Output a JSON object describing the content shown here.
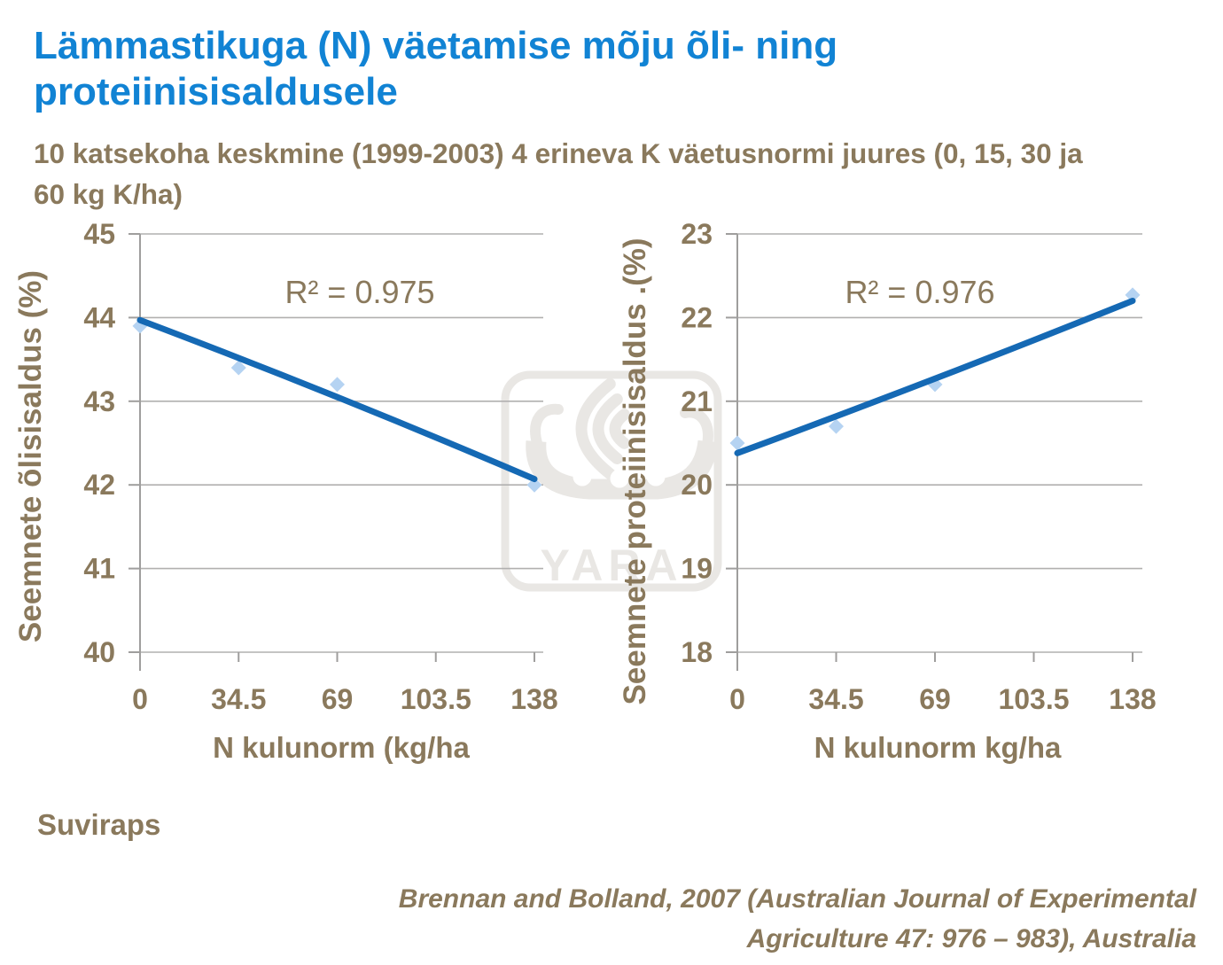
{
  "slide": {
    "title": "Lämmastikuga (N) väetamise mõju õli- ning proteiinisisaldusele",
    "subtitle": "10 katsekoha keskmine (1999-2003) 4 erineva K väetusnormi juures (0, 15, 30 ja 60 kg K/ha)",
    "footnote_left": "Suviraps",
    "citation": "Brennan and Bolland, 2007 (Australian Journal of Experimental Agriculture 47: 976 – 983), Australia",
    "watermark": "YARA"
  },
  "colors": {
    "title_blue": "#1183d4",
    "text_brown": "#8a795c",
    "trend_blue": "#1569b4",
    "marker_blue": "#b5d3f2",
    "gridline_gray": "#b1b0af",
    "axis_gray": "#9f9e9d",
    "watermark_gray": "#e9e7e4"
  },
  "chart_data": [
    {
      "type": "scatter",
      "title": "",
      "xlabel": "N kulunorm (kg/ha",
      "ylabel": "Seemnete õlisisaldus (%)",
      "r2_label": "R² = 0.975",
      "xticks": [
        0,
        34.5,
        69,
        103.5,
        138
      ],
      "x_tick_labels": [
        "0",
        "34.5",
        "69",
        "103.5",
        "138"
      ],
      "yticks": [
        40,
        41,
        42,
        43,
        44,
        45
      ],
      "ylim": [
        40,
        45
      ],
      "xlim": [
        0,
        138
      ],
      "grid": "horizontal",
      "legend": "none",
      "points": [
        [
          0,
          43.9
        ],
        [
          34.5,
          43.4
        ],
        [
          69,
          43.2
        ],
        [
          138,
          42.0
        ]
      ],
      "trend": [
        [
          0,
          43.97
        ],
        [
          69,
          43.05
        ],
        [
          138,
          42.07
        ]
      ]
    },
    {
      "type": "scatter",
      "title": "",
      "xlabel": "N kulunorm kg/ha",
      "ylabel": "Seemnete proteiinisisaldus .(%)",
      "r2_label": "R² = 0.976",
      "xticks": [
        0,
        34.5,
        69,
        103.5,
        138
      ],
      "x_tick_labels": [
        "0",
        "34.5",
        "69",
        "103.5",
        "138"
      ],
      "yticks": [
        18,
        19,
        20,
        21,
        22,
        23
      ],
      "ylim": [
        18,
        23
      ],
      "xlim": [
        0,
        138
      ],
      "grid": "horizontal",
      "legend": "none",
      "points": [
        [
          0,
          20.5
        ],
        [
          34.5,
          20.7
        ],
        [
          69,
          21.2
        ],
        [
          138,
          22.27
        ]
      ],
      "trend": [
        [
          0,
          20.38
        ],
        [
          69,
          21.27
        ],
        [
          138,
          22.2
        ]
      ]
    }
  ]
}
